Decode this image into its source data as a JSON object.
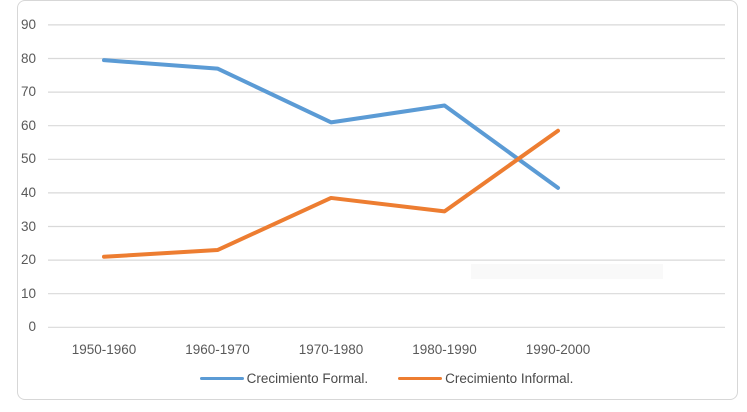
{
  "chart_data": {
    "type": "line",
    "title": "",
    "xlabel": "",
    "ylabel": "",
    "categories": [
      "1950-1960",
      "1960-1970",
      "1970-1980",
      "1980-1990",
      "1990-2000"
    ],
    "series": [
      {
        "name": "Crecimiento Formal.",
        "color": "#5B9BD5",
        "values": [
          79.5,
          77,
          61,
          66,
          41.5
        ]
      },
      {
        "name": "Crecimiento Informal.",
        "color": "#ED7D31",
        "values": [
          21,
          23,
          38.5,
          34.5,
          58.5
        ]
      }
    ],
    "ylim": [
      0,
      90
    ],
    "y_ticks": [
      90,
      80,
      70,
      60,
      50,
      40,
      30,
      20,
      10,
      0
    ],
    "grid": true,
    "legend_position": "bottom"
  },
  "colors": {
    "gridline": "#d9d9d9",
    "axis_text": "#595959",
    "legend_text": "#4a4a4a",
    "chart_border": "#d7d7d7",
    "background": "#ffffff"
  }
}
